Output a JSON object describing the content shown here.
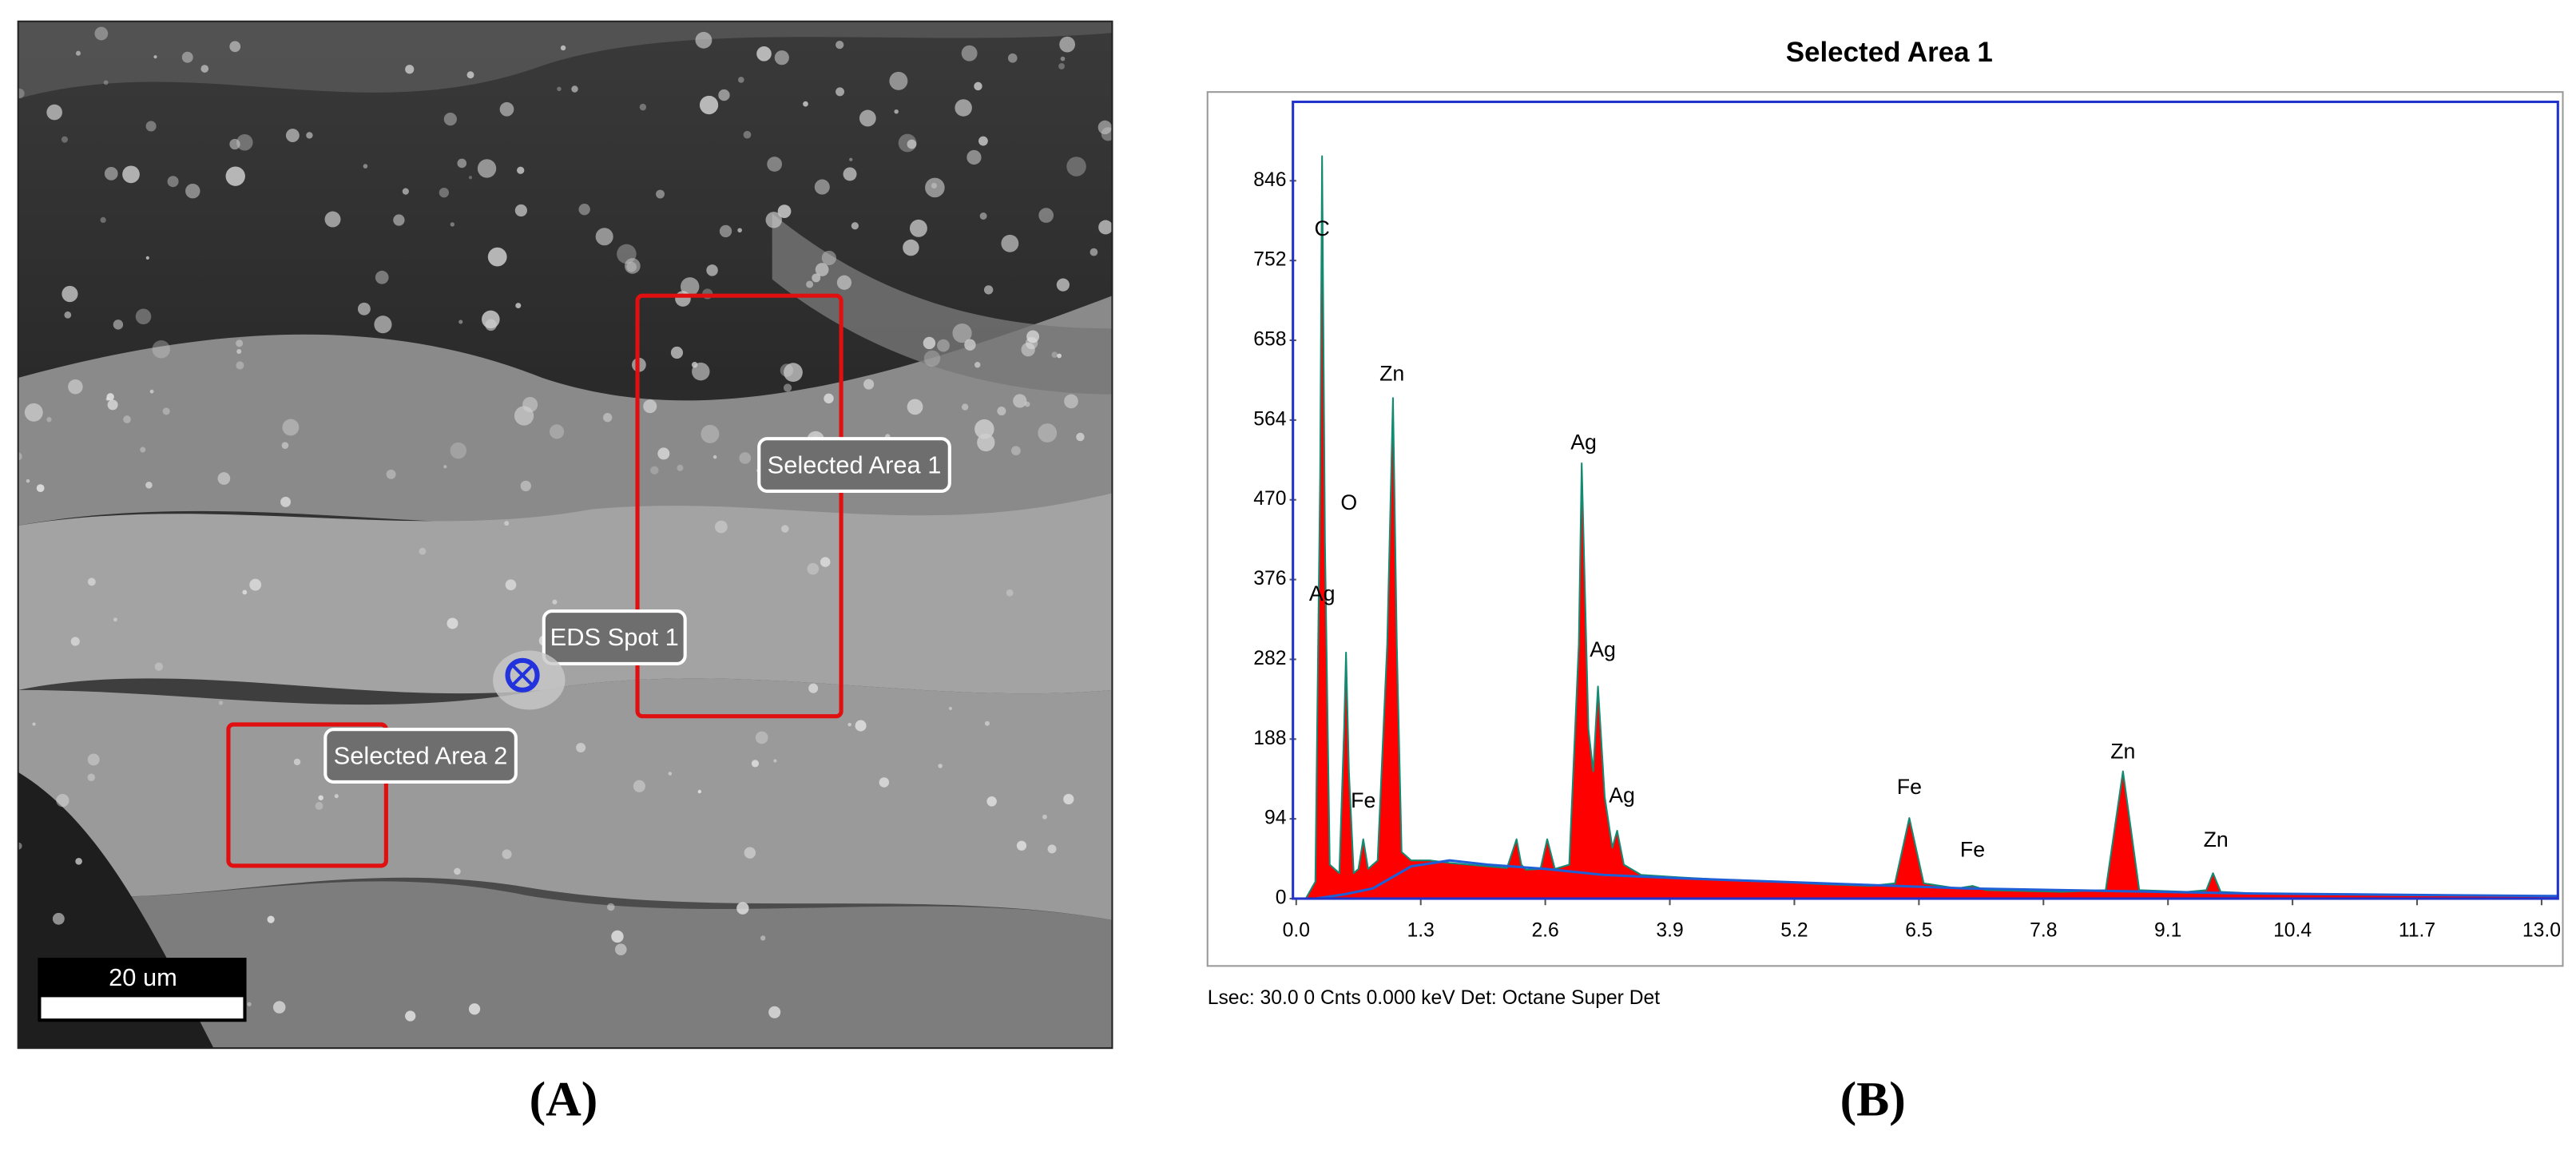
{
  "image_panel": {
    "annotations": [
      "Selected Area 1",
      "EDS Spot 1",
      "Selected Area 2"
    ],
    "scale_bar": "20 um"
  },
  "captions": [
    "(A)",
    "(B)"
  ],
  "chart_data": {
    "type": "area",
    "title": "Selected Area 1",
    "footer": "Lsec: 30.0 0 Cnts  0.000 keV Det: Octane Super Det",
    "xlim": [
      0,
      13.17
    ],
    "ylim": [
      0,
      939
    ],
    "xticks": [
      {
        "value": 0,
        "label": "0.0"
      },
      1.3,
      2.6,
      3.9,
      5.2,
      6.5,
      7.8,
      9.1,
      10.4,
      11.7,
      {
        "value": 13,
        "label": "13.0"
      }
    ],
    "yticks": [
      0,
      94,
      188,
      282,
      376,
      470,
      564,
      658,
      752,
      846
    ],
    "series": [
      {
        "color": "#ff0000",
        "stroke": "#138a72",
        "x": [
          0.1,
          0.2,
          0.25,
          0.27,
          0.3,
          0.35,
          0.45,
          0.5,
          0.52,
          0.55,
          0.6,
          0.65,
          0.7,
          0.75,
          0.85,
          0.95,
          1.01,
          1.05,
          1.1,
          1.2,
          1.4,
          1.6,
          1.8,
          2.0,
          2.2,
          2.3,
          2.35,
          2.4,
          2.55,
          2.62,
          2.7,
          2.85,
          2.95,
          2.98,
          3.05,
          3.1,
          3.15,
          3.22,
          3.3,
          3.35,
          3.42,
          3.6,
          4.0,
          4.5,
          5.0,
          5.5,
          6.0,
          6.25,
          6.4,
          6.55,
          6.9,
          7.06,
          7.2,
          8.0,
          8.45,
          8.63,
          8.8,
          9.3,
          9.5,
          9.57,
          9.65,
          10.0,
          11.0,
          12.0,
          13.0,
          13.17
        ],
        "values": [
          0,
          20,
          500,
          875,
          420,
          40,
          30,
          200,
          290,
          150,
          30,
          35,
          70,
          35,
          45,
          300,
          590,
          300,
          55,
          45,
          45,
          42,
          40,
          38,
          36,
          70,
          40,
          34,
          35,
          70,
          35,
          40,
          300,
          513,
          200,
          150,
          250,
          120,
          60,
          80,
          40,
          28,
          25,
          22,
          20,
          17,
          15,
          18,
          95,
          18,
          12,
          15,
          10,
          8,
          10,
          150,
          10,
          8,
          10,
          30,
          8,
          6,
          5,
          4,
          3,
          3
        ]
      },
      {
        "type": "line",
        "color": "#1f5fd6",
        "x": [
          0.2,
          0.5,
          0.8,
          1.2,
          1.6,
          2.0,
          2.6,
          3.2,
          4.0,
          5.0,
          6.0,
          7.0,
          8.0,
          9.0,
          10.0,
          11.0,
          12.0,
          13.17
        ],
        "values": [
          0,
          5,
          12,
          38,
          45,
          40,
          35,
          28,
          24,
          20,
          16,
          12,
          10,
          8,
          6,
          5,
          4,
          3
        ]
      }
    ],
    "annotations": [
      {
        "text": "C",
        "x": 0.27,
        "y": 788
      },
      {
        "text": "O",
        "x": 0.55,
        "y": 465
      },
      {
        "text": "Ag",
        "x": 0.27,
        "y": 358
      },
      {
        "text": "Zn",
        "x": 1.0,
        "y": 617
      },
      {
        "text": "Fe",
        "x": 0.7,
        "y": 114
      },
      {
        "text": "Ag",
        "x": 3.0,
        "y": 536
      },
      {
        "text": "Ag",
        "x": 3.2,
        "y": 292
      },
      {
        "text": "Ag",
        "x": 3.4,
        "y": 120
      },
      {
        "text": "Fe",
        "x": 6.4,
        "y": 130
      },
      {
        "text": "Fe",
        "x": 7.06,
        "y": 56
      },
      {
        "text": "Zn",
        "x": 8.63,
        "y": 172
      },
      {
        "text": "Zn",
        "x": 9.6,
        "y": 68
      }
    ]
  }
}
